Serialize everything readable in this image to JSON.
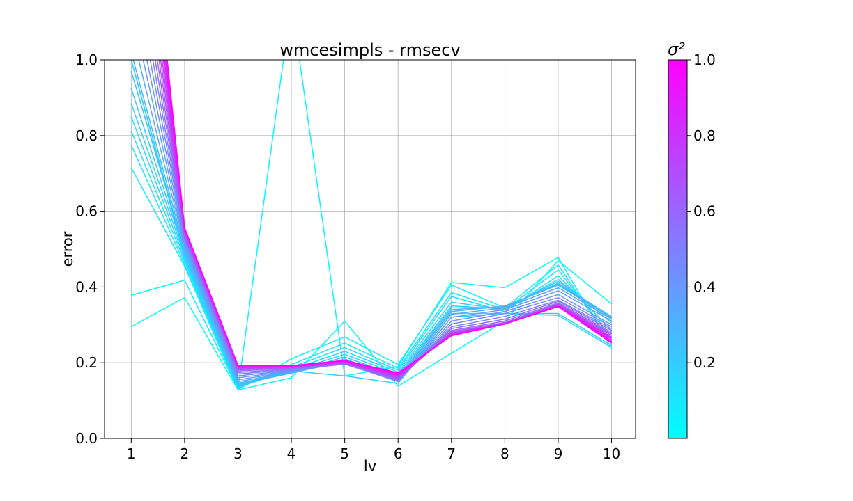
{
  "chart_data": {
    "type": "line",
    "title": "wmcesimpls - rmsecv",
    "xlabel": "lv",
    "ylabel": "error",
    "x": [
      1,
      2,
      3,
      4,
      5,
      6,
      7,
      8,
      9,
      10
    ],
    "xticks": [
      "1",
      "2",
      "3",
      "4",
      "5",
      "6",
      "7",
      "8",
      "9",
      "10"
    ],
    "xlim": [
      0.5,
      10.45
    ],
    "ylim": [
      0.0,
      1.0
    ],
    "yticks": [
      "0.0",
      "0.2",
      "0.4",
      "0.6",
      "0.8",
      "1.0"
    ],
    "grid": true,
    "colormap": {
      "low": "#00ffff",
      "high": "#ff00ff",
      "name": "cool"
    },
    "colorbar": {
      "label": "σ²",
      "range": [
        0.0,
        1.0
      ],
      "ticks": [
        "0.2",
        "0.4",
        "0.6",
        "0.8",
        "1.0"
      ],
      "tick_values": [
        0.2,
        0.4,
        0.6,
        0.8,
        1.0
      ]
    },
    "series": [
      {
        "sigma2": 0.02,
        "values": [
          0.295,
          0.372,
          0.128,
          0.16,
          0.31,
          0.138,
          0.225,
          0.31,
          0.47,
          0.355
        ]
      },
      {
        "sigma2": 0.04,
        "values": [
          0.378,
          0.418,
          0.13,
          1.15,
          0.165,
          0.19,
          0.412,
          0.398,
          0.478,
          0.238
        ]
      },
      {
        "sigma2": 0.07,
        "values": [
          0.715,
          0.455,
          0.129,
          0.21,
          0.268,
          0.195,
          0.405,
          0.345,
          0.458,
          0.25
        ]
      },
      {
        "sigma2": 0.1,
        "values": [
          0.775,
          0.46,
          0.131,
          0.195,
          0.252,
          0.185,
          0.385,
          0.34,
          0.445,
          0.265
        ]
      },
      {
        "sigma2": 0.13,
        "values": [
          0.812,
          0.468,
          0.134,
          0.188,
          0.24,
          0.18,
          0.375,
          0.335,
          0.43,
          0.285
        ]
      },
      {
        "sigma2": 0.16,
        "values": [
          0.85,
          0.475,
          0.136,
          0.182,
          0.23,
          0.175,
          0.36,
          0.34,
          0.42,
          0.305
        ]
      },
      {
        "sigma2": 0.19,
        "values": [
          0.885,
          0.482,
          0.138,
          0.178,
          0.222,
          0.17,
          0.35,
          0.342,
          0.415,
          0.318
        ]
      },
      {
        "sigma2": 0.22,
        "values": [
          0.925,
          0.488,
          0.14,
          0.175,
          0.215,
          0.165,
          0.345,
          0.345,
          0.41,
          0.322
        ]
      },
      {
        "sigma2": 0.26,
        "values": [
          0.97,
          0.494,
          0.143,
          0.172,
          0.21,
          0.16,
          0.34,
          0.348,
          0.408,
          0.32
        ]
      },
      {
        "sigma2": 0.3,
        "values": [
          1.02,
          0.5,
          0.146,
          0.172,
          0.205,
          0.158,
          0.335,
          0.35,
          0.405,
          0.318
        ]
      },
      {
        "sigma2": 0.34,
        "values": [
          1.08,
          0.506,
          0.15,
          0.174,
          0.202,
          0.155,
          0.328,
          0.345,
          0.398,
          0.315
        ]
      },
      {
        "sigma2": 0.38,
        "values": [
          1.14,
          0.512,
          0.155,
          0.176,
          0.2,
          0.152,
          0.32,
          0.34,
          0.39,
          0.31
        ]
      },
      {
        "sigma2": 0.42,
        "values": [
          1.2,
          0.518,
          0.16,
          0.178,
          0.198,
          0.15,
          0.31,
          0.335,
          0.38,
          0.3
        ]
      },
      {
        "sigma2": 0.46,
        "values": [
          1.26,
          0.524,
          0.165,
          0.18,
          0.197,
          0.15,
          0.302,
          0.33,
          0.372,
          0.295
        ]
      },
      {
        "sigma2": 0.5,
        "values": [
          1.32,
          0.528,
          0.17,
          0.182,
          0.196,
          0.152,
          0.295,
          0.322,
          0.365,
          0.29
        ]
      },
      {
        "sigma2": 0.55,
        "values": [
          1.38,
          0.532,
          0.174,
          0.184,
          0.197,
          0.154,
          0.29,
          0.315,
          0.362,
          0.285
        ]
      },
      {
        "sigma2": 0.6,
        "values": [
          1.44,
          0.536,
          0.178,
          0.186,
          0.198,
          0.156,
          0.285,
          0.31,
          0.358,
          0.28
        ]
      },
      {
        "sigma2": 0.65,
        "values": [
          1.5,
          0.54,
          0.181,
          0.187,
          0.199,
          0.158,
          0.282,
          0.306,
          0.355,
          0.276
        ]
      },
      {
        "sigma2": 0.7,
        "values": [
          1.56,
          0.543,
          0.184,
          0.188,
          0.2,
          0.16,
          0.279,
          0.304,
          0.353,
          0.272
        ]
      },
      {
        "sigma2": 0.75,
        "values": [
          1.62,
          0.546,
          0.186,
          0.189,
          0.201,
          0.163,
          0.277,
          0.303,
          0.352,
          0.268
        ]
      },
      {
        "sigma2": 0.8,
        "values": [
          1.68,
          0.549,
          0.188,
          0.189,
          0.202,
          0.165,
          0.275,
          0.302,
          0.351,
          0.265
        ]
      },
      {
        "sigma2": 0.85,
        "values": [
          1.74,
          0.551,
          0.19,
          0.19,
          0.203,
          0.167,
          0.274,
          0.302,
          0.35,
          0.262
        ]
      },
      {
        "sigma2": 0.9,
        "values": [
          1.8,
          0.553,
          0.191,
          0.191,
          0.204,
          0.169,
          0.273,
          0.302,
          0.35,
          0.258
        ]
      },
      {
        "sigma2": 0.95,
        "values": [
          1.86,
          0.555,
          0.192,
          0.191,
          0.205,
          0.171,
          0.272,
          0.302,
          0.349,
          0.255
        ]
      },
      {
        "sigma2": 1.0,
        "values": [
          1.92,
          0.557,
          0.193,
          0.192,
          0.206,
          0.173,
          0.271,
          0.302,
          0.348,
          0.252
        ]
      },
      {
        "sigma2": 0.12,
        "values": [
          1.0,
          0.49,
          0.135,
          0.18,
          0.205,
          0.15,
          0.33,
          0.33,
          0.325,
          0.24
        ]
      },
      {
        "sigma2": 0.18,
        "values": [
          1.0,
          0.48,
          0.14,
          0.178,
          0.165,
          0.145,
          0.32,
          0.33,
          0.33,
          0.245
        ]
      }
    ]
  }
}
